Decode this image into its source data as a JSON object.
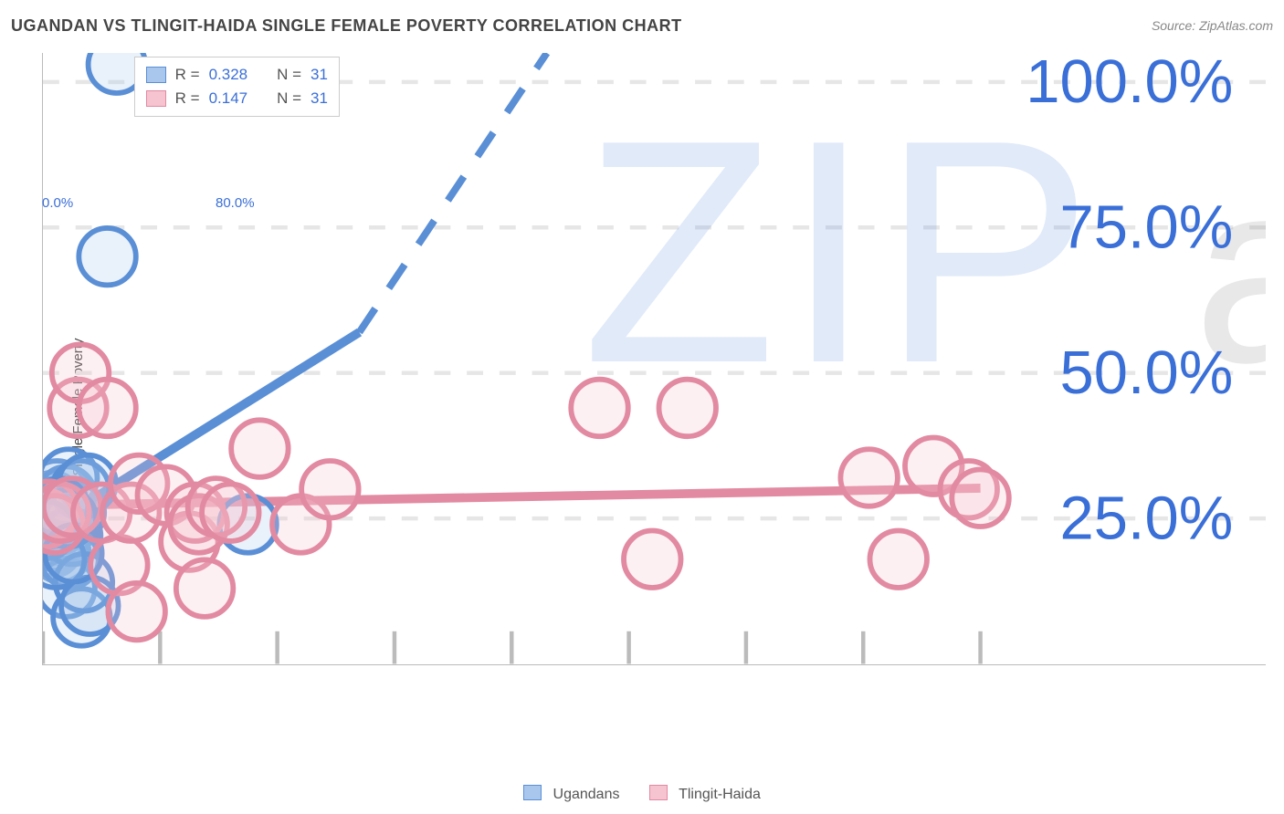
{
  "header": {
    "title": "UGANDAN VS TLINGIT-HAIDA SINGLE FEMALE POVERTY CORRELATION CHART",
    "source": "Source: ZipAtlas.com"
  },
  "watermark": {
    "zip": "ZIP",
    "atlas": "atlas"
  },
  "ylabel": "Single Female Poverty",
  "chart": {
    "type": "scatter",
    "xlim": [
      0,
      80
    ],
    "ylim": [
      0,
      105
    ],
    "x_ticks": [
      0,
      10,
      20,
      30,
      40,
      50,
      60,
      70,
      80
    ],
    "x_tick_labels": {
      "0": "0.0%",
      "80": "80.0%"
    },
    "y_ticks": [
      25,
      50,
      75,
      100
    ],
    "y_tick_labels": {
      "25": "25.0%",
      "50": "50.0%",
      "75": "75.0%",
      "100": "100.0%"
    },
    "grid_color": "#e6e6e6",
    "axis_color": "#bbbbbb",
    "background_color": "#ffffff",
    "point_radius": 7,
    "point_stroke_width": 1.3,
    "point_fill_opacity": 0.25,
    "series": [
      {
        "name": "Ugandans",
        "color_stroke": "#5a8fd6",
        "color_fill": "#a9c7ec",
        "r_value": "0.328",
        "n_value": "31",
        "trend": {
          "x1": 0,
          "y1": 23,
          "x2_solid": 27,
          "y2_solid": 57,
          "x2_dash": 43,
          "y2_dash": 105,
          "stroke_width": 2.2
        },
        "points": [
          [
            0.2,
            24
          ],
          [
            0.5,
            26
          ],
          [
            0.5,
            22
          ],
          [
            0.8,
            20
          ],
          [
            0.8,
            28
          ],
          [
            1.0,
            27
          ],
          [
            1.2,
            30
          ],
          [
            1.2,
            21
          ],
          [
            1.5,
            19
          ],
          [
            1.5,
            24
          ],
          [
            1.8,
            23
          ],
          [
            2.0,
            29
          ],
          [
            2.0,
            13
          ],
          [
            2.2,
            32
          ],
          [
            2.3,
            18
          ],
          [
            2.5,
            22
          ],
          [
            2.8,
            26
          ],
          [
            3.2,
            30
          ],
          [
            3.3,
            8
          ],
          [
            3.5,
            14
          ],
          [
            3.8,
            31
          ],
          [
            4.0,
            10
          ],
          [
            5.5,
            70
          ],
          [
            6.3,
            103
          ],
          [
            0.3,
            23
          ],
          [
            0.6,
            25
          ],
          [
            1.1,
            18
          ],
          [
            1.4,
            27
          ],
          [
            2.1,
            25
          ],
          [
            2.6,
            19
          ],
          [
            17.5,
            24
          ]
        ]
      },
      {
        "name": "Tlingit-Haida",
        "color_stroke": "#e28aa1",
        "color_fill": "#f6c3d1",
        "r_value": "0.147",
        "n_value": "31",
        "trend": {
          "x1": 0,
          "y1": 27.2,
          "x2_solid": 80,
          "y2_solid": 30.2,
          "x2_dash": 80,
          "y2_dash": 30.2,
          "stroke_width": 2.2
        },
        "points": [
          [
            0.2,
            25
          ],
          [
            0.5,
            26.5
          ],
          [
            1.0,
            24
          ],
          [
            1.5,
            26
          ],
          [
            2.5,
            27
          ],
          [
            3.0,
            44
          ],
          [
            3.2,
            50
          ],
          [
            5.0,
            26
          ],
          [
            5.5,
            44
          ],
          [
            6.5,
            17
          ],
          [
            7.5,
            26
          ],
          [
            8.0,
            9
          ],
          [
            8.2,
            31
          ],
          [
            10.5,
            29
          ],
          [
            12.5,
            21
          ],
          [
            13.0,
            26
          ],
          [
            13.3,
            24
          ],
          [
            13.8,
            13
          ],
          [
            14.8,
            27
          ],
          [
            16.0,
            26
          ],
          [
            18.5,
            37
          ],
          [
            22.0,
            24
          ],
          [
            24.5,
            30
          ],
          [
            47.5,
            44
          ],
          [
            52.0,
            18
          ],
          [
            55.0,
            44
          ],
          [
            70.5,
            32
          ],
          [
            73.0,
            18
          ],
          [
            76.0,
            34
          ],
          [
            79.0,
            30
          ],
          [
            80.0,
            28.5
          ]
        ]
      }
    ]
  },
  "r_legend": {
    "r_label": "R =",
    "n_label": "N ="
  },
  "bottom_legend": {
    "items": [
      "Ugandans",
      "Tlingit-Haida"
    ]
  }
}
